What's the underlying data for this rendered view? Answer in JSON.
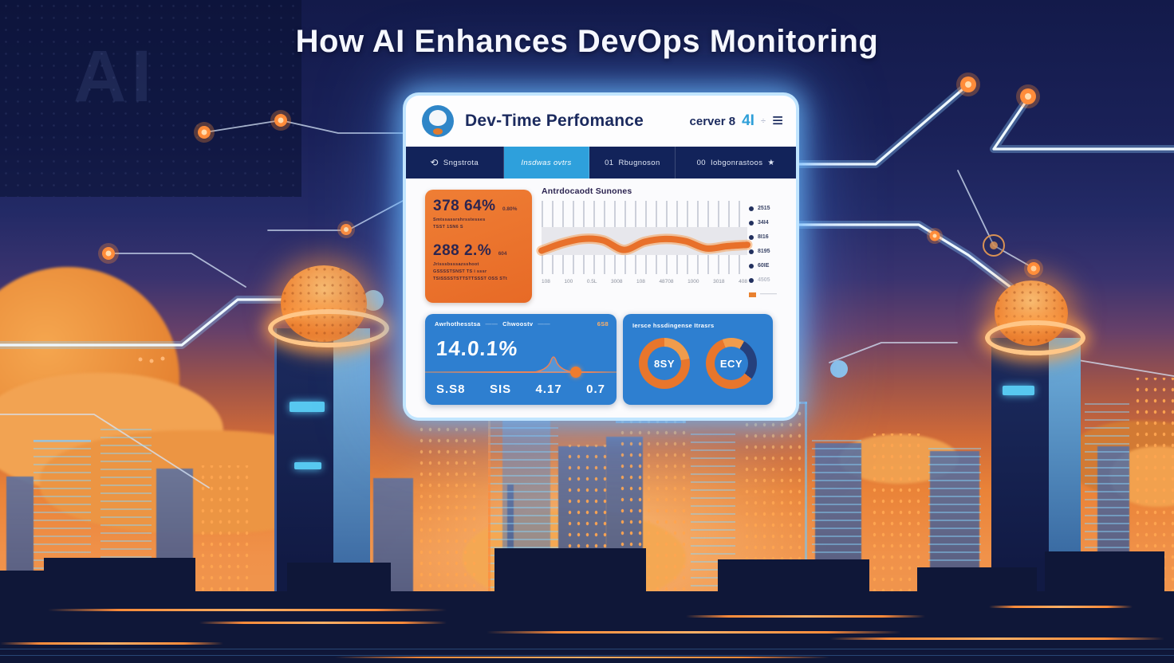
{
  "page": {
    "title": "How AI Enhances DevOps Monitoring",
    "watermark": "AI"
  },
  "colors": {
    "accent_blue": "#2e9fd8",
    "orange": "#e97328",
    "navy": "#12235a",
    "card_blue": "#2e7fd0",
    "glow_blue": "#aee2ff"
  },
  "dashboard": {
    "header": {
      "title": "Dev-Time Perfomance",
      "server_label": "cerver 8",
      "version_badge": "4I",
      "divider_glyph": "÷",
      "menu_glyph": "≡"
    },
    "tabs": [
      {
        "icon": "⟲",
        "label": "Sngstrota"
      },
      {
        "label": "Insdwas ovtrs",
        "active": true
      },
      {
        "prefix": "01",
        "label": "Rbugnoson"
      },
      {
        "prefix": "00",
        "label": "Iobgonrastoos",
        "star": "★"
      }
    ],
    "stats_card": {
      "stat1": {
        "value": "378 64%",
        "side": "0.80%",
        "lines": [
          "Smtssassrshrsstesses",
          "TSST 1SN6 S"
        ]
      },
      "stat2": {
        "value": "288 2.%",
        "side": "604",
        "lines": [
          "Jrisssbsssazsshoot",
          "GSSSSTSNST TS i sssr",
          "TSISSSSTSTTSTTSSST OSS STt"
        ]
      }
    },
    "chart": {
      "type": "line",
      "title": "Antrdocaodt Sunones",
      "points": [
        68,
        58,
        52,
        54,
        67,
        56,
        52,
        55,
        65,
        62,
        60
      ],
      "x_labels": [
        "108",
        "100",
        "0.5L",
        "3008",
        "108",
        "48708",
        "1000",
        "3018",
        "408"
      ]
    },
    "legend": {
      "items": [
        "2515",
        "34I4",
        "8I16",
        "8195",
        "60IE",
        "4505"
      ],
      "swatch_label": "———"
    },
    "metrics_card": {
      "header_left": "Awrhothesstsa",
      "header_left_dash": "——",
      "header_right": "Chwoostv",
      "header_right_dash": "——",
      "corner_value": "6S8",
      "big_value": "14.0.1%",
      "values": [
        "S.S8",
        "SIS",
        "4.17",
        "0.7"
      ]
    },
    "gauges_card": {
      "title": "Iersce hssdingense Itrasrs",
      "gauge1": "8SY",
      "gauge2": "ECY"
    }
  }
}
